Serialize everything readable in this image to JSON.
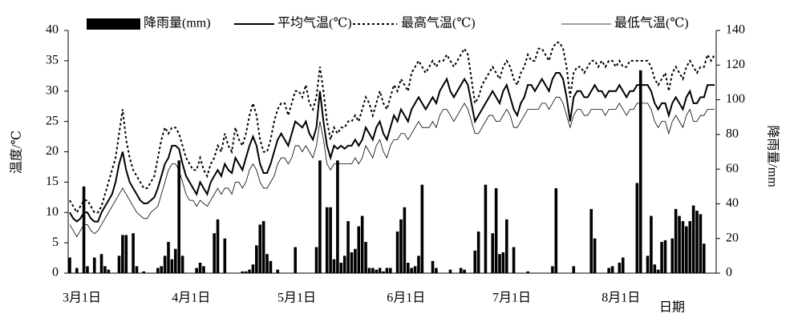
{
  "chart_data": {
    "type": "bar-line",
    "y_label": "温度/℃",
    "y2_label": "降雨量/mm",
    "x_label": "日期",
    "categories": [
      "3月1日",
      null,
      null,
      null,
      null,
      null,
      null,
      null,
      null,
      null,
      null,
      null,
      null,
      null,
      null,
      null,
      null,
      null,
      null,
      null,
      null,
      null,
      null,
      null,
      null,
      null,
      null,
      null,
      null,
      null,
      null,
      "4月1日",
      null,
      null,
      null,
      null,
      null,
      null,
      null,
      null,
      null,
      null,
      null,
      null,
      null,
      null,
      null,
      null,
      null,
      null,
      null,
      null,
      null,
      null,
      null,
      null,
      null,
      null,
      null,
      null,
      null,
      "5月1日",
      null,
      null,
      null,
      null,
      null,
      null,
      null,
      null,
      null,
      null,
      null,
      null,
      null,
      null,
      null,
      null,
      null,
      null,
      null,
      null,
      null,
      null,
      null,
      null,
      null,
      null,
      null,
      null,
      null,
      null,
      "6月1日",
      null,
      null,
      null,
      null,
      null,
      null,
      null,
      null,
      null,
      null,
      null,
      null,
      null,
      null,
      null,
      null,
      null,
      null,
      null,
      null,
      null,
      null,
      null,
      null,
      null,
      null,
      null,
      null,
      null,
      "7月1日",
      null,
      null,
      null,
      null,
      null,
      null,
      null,
      null,
      null,
      null,
      null,
      null,
      null,
      null,
      null,
      null,
      null,
      null,
      null,
      null,
      null,
      null,
      null,
      null,
      null,
      null,
      null,
      null,
      null,
      null,
      "8月1日",
      null,
      null,
      null,
      null,
      null,
      null,
      null,
      null,
      null,
      null,
      null,
      null,
      null,
      null,
      null,
      null,
      null,
      null,
      null,
      null,
      null,
      null,
      null,
      null,
      null,
      null,
      null,
      null,
      null,
      null
    ],
    "ylim": [
      0,
      40
    ],
    "yticks": [
      0,
      5,
      10,
      15,
      20,
      25,
      30,
      35,
      40
    ],
    "y2lim": [
      0,
      140
    ],
    "y2ticks": [
      0,
      20,
      40,
      60,
      80,
      100,
      120,
      140
    ],
    "grid": false,
    "legend": "top",
    "series": [
      {
        "name": "降雨量(mm)",
        "color": "#000000",
        "kind": "bar",
        "axis": "y2",
        "values": [
          9,
          0,
          3,
          0,
          50,
          4,
          0,
          9,
          0,
          11,
          4,
          2,
          0,
          0,
          10,
          22,
          22,
          0,
          23,
          4,
          0,
          1,
          0,
          0,
          0,
          3,
          4,
          10,
          18,
          8,
          14,
          65,
          10,
          0,
          0,
          0,
          3,
          6,
          4,
          0,
          0,
          23,
          31,
          0,
          20,
          0,
          0,
          0,
          0,
          1,
          1,
          2,
          5,
          16,
          28,
          30,
          11,
          7,
          0,
          2,
          0,
          0,
          0,
          0,
          15,
          0,
          0,
          0,
          0,
          0,
          15,
          65,
          0,
          38,
          38,
          8,
          65,
          6,
          10,
          30,
          12,
          14,
          27,
          33,
          18,
          3,
          3,
          2,
          3,
          1,
          3,
          3,
          0,
          24,
          31,
          38,
          6,
          3,
          4,
          10,
          51,
          0,
          0,
          7,
          3,
          0,
          0,
          0,
          2,
          0,
          0,
          3,
          2,
          0,
          0,
          13,
          24,
          0,
          51,
          0,
          23,
          49,
          11,
          12,
          31,
          0,
          15,
          0,
          0,
          0,
          1,
          0,
          0,
          0,
          0,
          0,
          0,
          4,
          49,
          0,
          0,
          0,
          0,
          4,
          0,
          0,
          0,
          0,
          37,
          20,
          0,
          0,
          0,
          3,
          4,
          0,
          6,
          9,
          0,
          0,
          0,
          52,
          117,
          0,
          10,
          33,
          5,
          2,
          18,
          19,
          0,
          20,
          37,
          33,
          30,
          27,
          30,
          39,
          36,
          34,
          17,
          0,
          0,
          0
        ]
      },
      {
        "name": "平均气温(℃)",
        "color": "#000000",
        "kind": "line",
        "style": "thick",
        "values": [
          10,
          9,
          8.5,
          9,
          10,
          10,
          9,
          8.5,
          8.5,
          10,
          11,
          12,
          13,
          15,
          18,
          20,
          17,
          15,
          14,
          13,
          12,
          11.5,
          11.5,
          12,
          12.5,
          14,
          16,
          18,
          19,
          21,
          21,
          20.5,
          18,
          16,
          15,
          14,
          13,
          15,
          14,
          13,
          15,
          16,
          17,
          16,
          18,
          17,
          16.5,
          19,
          18,
          17,
          19,
          21,
          22.5,
          21,
          18,
          16.5,
          16.5,
          18,
          20,
          22,
          23,
          22,
          21,
          23,
          25,
          24.5,
          24,
          25,
          23,
          22,
          24,
          30,
          25,
          21,
          19,
          21,
          20.5,
          21,
          20.5,
          21,
          21,
          22,
          21,
          22,
          24,
          23,
          22,
          24,
          25,
          23,
          22,
          24,
          26,
          25,
          27,
          26,
          25,
          27,
          28,
          29,
          28,
          27,
          28,
          29,
          28,
          30,
          31,
          32,
          30,
          29,
          30,
          31,
          32,
          31,
          28,
          25,
          26,
          27,
          28,
          29,
          30,
          29,
          28,
          30,
          31,
          29,
          27,
          26,
          28,
          29,
          31,
          31,
          30,
          31,
          32,
          31,
          30,
          32,
          33,
          33,
          32,
          29,
          25,
          29,
          30,
          30,
          29,
          29,
          30,
          31,
          30,
          30,
          29,
          30,
          30,
          30,
          31,
          30,
          29,
          30,
          30,
          31,
          31,
          31,
          31,
          30,
          28,
          27,
          28,
          28,
          26,
          28,
          29,
          28,
          27,
          29,
          30,
          28,
          28,
          29,
          29,
          31,
          31,
          31
        ]
      },
      {
        "name": "最高气温(℃)",
        "color": "#000000",
        "kind": "line",
        "style": "dotted",
        "values": [
          12,
          11,
          10,
          11,
          12,
          12,
          11,
          10,
          10,
          11,
          13,
          15,
          17,
          19,
          23,
          27,
          22,
          19,
          17,
          16,
          15,
          14,
          14,
          15,
          16,
          19,
          22,
          24,
          23,
          24,
          24,
          23,
          21,
          19,
          18,
          17,
          17,
          19,
          17,
          16,
          18,
          19,
          21,
          20,
          23,
          21,
          20,
          24,
          22,
          21,
          23,
          26,
          28,
          26,
          22,
          20,
          20,
          22,
          25,
          27,
          28,
          28,
          26,
          28,
          30,
          30,
          29,
          31,
          28,
          27,
          29,
          34,
          30,
          25,
          22,
          24,
          23,
          24,
          24,
          25,
          25,
          26,
          25,
          27,
          29,
          28,
          26,
          28,
          30,
          28,
          27,
          29,
          31,
          30,
          32,
          31,
          30,
          33,
          34,
          35,
          34,
          33,
          34,
          35,
          34,
          35,
          35,
          36,
          35,
          34,
          35,
          36,
          37,
          36,
          32,
          28,
          29,
          31,
          32,
          33,
          34,
          33,
          32,
          34,
          35,
          34,
          32,
          31,
          33,
          34,
          36,
          35,
          35,
          37,
          37,
          36,
          35,
          37,
          38,
          38,
          37,
          34,
          29,
          33,
          34,
          34,
          33,
          34,
          35,
          35,
          34,
          35,
          34,
          35,
          35,
          34,
          35,
          34,
          34,
          35,
          35,
          35,
          35,
          35,
          35,
          34,
          32,
          31,
          32,
          33,
          30,
          33,
          34,
          33,
          32,
          34,
          35,
          34,
          33,
          34,
          34,
          36,
          35,
          36
        ]
      },
      {
        "name": "最低气温(℃)",
        "color": "#000000",
        "kind": "line",
        "style": "thin",
        "values": [
          8,
          7,
          6,
          7,
          8,
          8,
          7,
          6.5,
          7,
          8,
          9,
          10,
          11,
          12,
          13,
          14,
          13,
          12,
          11,
          10,
          9.5,
          9,
          9,
          10,
          10.5,
          11,
          13,
          15,
          17,
          18,
          18,
          17,
          15,
          13,
          12,
          12,
          11,
          12,
          11.5,
          11,
          12,
          13,
          14,
          13,
          14,
          14,
          13,
          15,
          15,
          14,
          15,
          17,
          18,
          17,
          15,
          14,
          14,
          15,
          16,
          18,
          19,
          19,
          18,
          19,
          21,
          21,
          20,
          21,
          20,
          19,
          21,
          25,
          22,
          18,
          17,
          18,
          18,
          18,
          18,
          18,
          18,
          19,
          18,
          19,
          21,
          20,
          19,
          21,
          22,
          20,
          19,
          21,
          22,
          22,
          23,
          23,
          22,
          23,
          24,
          25,
          24,
          24,
          24,
          25,
          24,
          26,
          27,
          27,
          26,
          25,
          26,
          27,
          28,
          27,
          25,
          23,
          23,
          24,
          25,
          26,
          26,
          25,
          25,
          26,
          27,
          26,
          24,
          24,
          25,
          26,
          27,
          27,
          27,
          27,
          28,
          28,
          27,
          28,
          29,
          29,
          28,
          26,
          24,
          26,
          27,
          27,
          26,
          26,
          27,
          27,
          27,
          27,
          26,
          27,
          27,
          27,
          28,
          27,
          26,
          27,
          27,
          28,
          28,
          28,
          28,
          27,
          25,
          24,
          25,
          25,
          23,
          25,
          26,
          25,
          24,
          26,
          27,
          25,
          25,
          26,
          26,
          27,
          27,
          27
        ]
      }
    ]
  }
}
